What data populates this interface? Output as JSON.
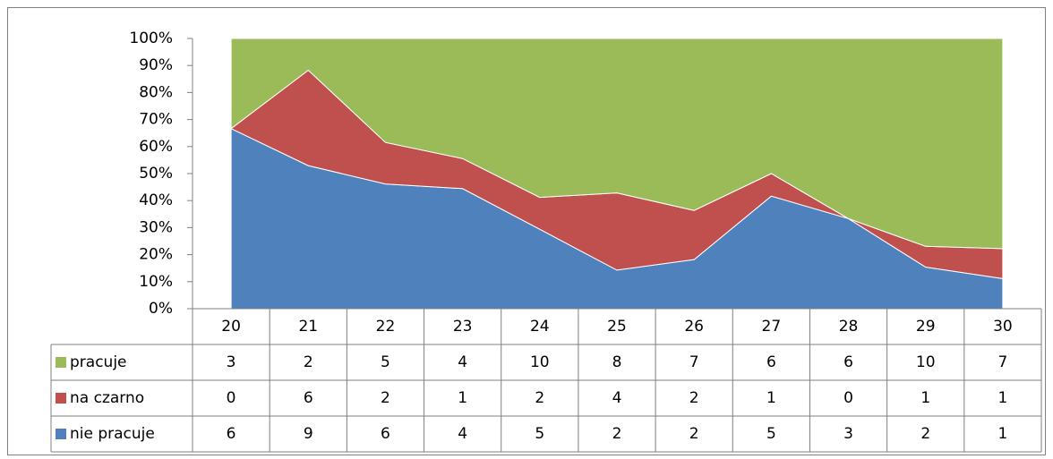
{
  "chart_data": {
    "type": "area",
    "stacking": "percent",
    "categories": [
      "20",
      "21",
      "22",
      "23",
      "24",
      "25",
      "26",
      "27",
      "28",
      "29",
      "30"
    ],
    "series": [
      {
        "name": "pracuje",
        "color": "#9bbb59",
        "values": [
          3,
          2,
          5,
          4,
          10,
          8,
          7,
          6,
          6,
          10,
          7
        ]
      },
      {
        "name": "na czarno",
        "color": "#c0504d",
        "values": [
          0,
          6,
          2,
          1,
          2,
          4,
          2,
          1,
          0,
          1,
          1
        ]
      },
      {
        "name": "nie pracuje",
        "color": "#4f81bd",
        "values": [
          6,
          9,
          6,
          4,
          5,
          2,
          2,
          5,
          3,
          2,
          1
        ]
      }
    ],
    "ylim": [
      0,
      100
    ],
    "yticks": [
      {
        "value": 0,
        "label": "0%"
      },
      {
        "value": 10,
        "label": "10%"
      },
      {
        "value": 20,
        "label": "20%"
      },
      {
        "value": 30,
        "label": "30%"
      },
      {
        "value": 40,
        "label": "40%"
      },
      {
        "value": 50,
        "label": "50%"
      },
      {
        "value": 60,
        "label": "60%"
      },
      {
        "value": 70,
        "label": "70%"
      },
      {
        "value": 80,
        "label": "80%"
      },
      {
        "value": 90,
        "label": "90%"
      },
      {
        "value": 100,
        "label": "100%"
      }
    ],
    "grid": false,
    "data_table": true
  }
}
